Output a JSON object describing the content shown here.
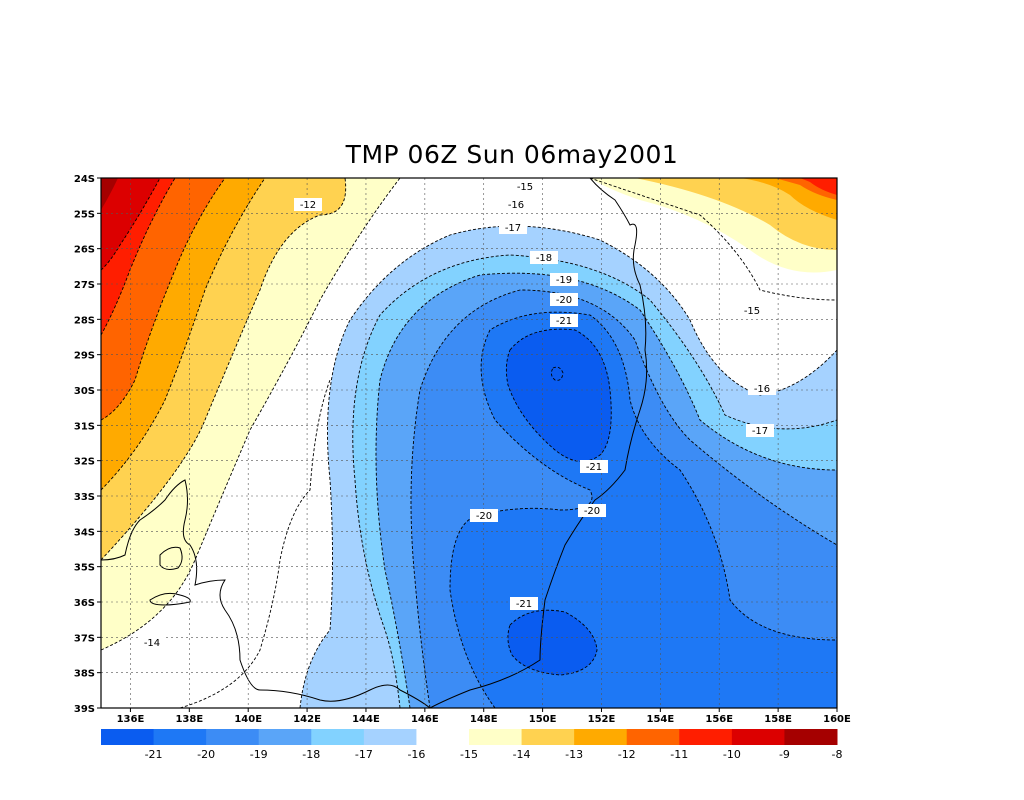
{
  "title": "TMP 06Z Sun 06may2001",
  "map": {
    "lon_range": [
      135,
      160
    ],
    "lat_range": [
      -39,
      -24
    ],
    "lon_ticks": [
      "136E",
      "138E",
      "140E",
      "142E",
      "144E",
      "146E",
      "148E",
      "150E",
      "152E",
      "154E",
      "156E",
      "158E",
      "160E"
    ],
    "lat_ticks": [
      "24S",
      "25S",
      "26S",
      "27S",
      "28S",
      "29S",
      "30S",
      "31S",
      "32S",
      "33S",
      "34S",
      "35S",
      "36S",
      "37S",
      "38S",
      "39S"
    ],
    "grid": true,
    "contour_labels": [
      "-15",
      "-16",
      "-17",
      "-18",
      "-19",
      "-20",
      "-21",
      "-12",
      "-15",
      "-16",
      "-17",
      "-21",
      "-20",
      "-20",
      "-21",
      "-14"
    ]
  },
  "colorbar": {
    "labels": [
      "-21",
      "-20",
      "-19",
      "-18",
      "-17",
      "-16",
      "-15",
      "-14",
      "-13",
      "-12",
      "-11",
      "-10",
      "-9",
      "-8"
    ],
    "colors": [
      "#0a5cf0",
      "#1e78f5",
      "#3c8cf5",
      "#5aa5f8",
      "#82d2ff",
      "#a5d2ff",
      "#ffffff",
      "#ffffc8",
      "#ffd250",
      "#ffaa00",
      "#ff6400",
      "#ff1e00",
      "#dc0000",
      "#a50000"
    ]
  }
}
